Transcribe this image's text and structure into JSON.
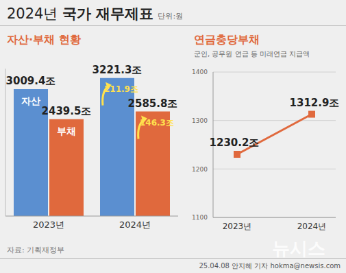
{
  "title": "2024년 국가 재무제표",
  "unit": "단위:원",
  "source": "자료: 기획재정부",
  "credit": "25.04.08 안지혜 기자 hokma@newsis.com",
  "watermark": "뉴시스",
  "chart_data": [
    {
      "type": "bar",
      "title": "자산·부채 현황",
      "categories": [
        "2023년",
        "2024년"
      ],
      "series": [
        {
          "name": "자산",
          "color": "#5b8fd0",
          "values": [
            3009.4,
            3221.3
          ],
          "value_labels": [
            "3009.4조",
            "3221.3조"
          ],
          "changes": [
            null,
            211.9
          ],
          "change_labels": [
            null,
            "211.9조"
          ]
        },
        {
          "name": "부채",
          "color": "#e0693d",
          "values": [
            2439.5,
            2585.8
          ],
          "value_labels": [
            "2439.5조",
            "2585.8조"
          ],
          "changes": [
            null,
            146.3
          ],
          "change_labels": [
            null,
            "146.3조"
          ]
        }
      ],
      "ylim": [
        600,
        3400
      ],
      "tick_labels": "x",
      "data_labels": true,
      "grid": false
    },
    {
      "type": "line",
      "title": "연금충당부채",
      "subtitle": "군인, 공무원 연금 등 미래연금 지급액",
      "categories": [
        "2023년",
        "2024년"
      ],
      "values": [
        1230.2,
        1312.9
      ],
      "value_labels": [
        "1230.2조",
        "1312.9조"
      ],
      "color": "#e0693d",
      "marker": "square",
      "ylim": [
        1100,
        1400
      ],
      "yticks": [
        1100,
        1200,
        1300,
        1400
      ],
      "grid": true,
      "data_labels": true
    }
  ]
}
